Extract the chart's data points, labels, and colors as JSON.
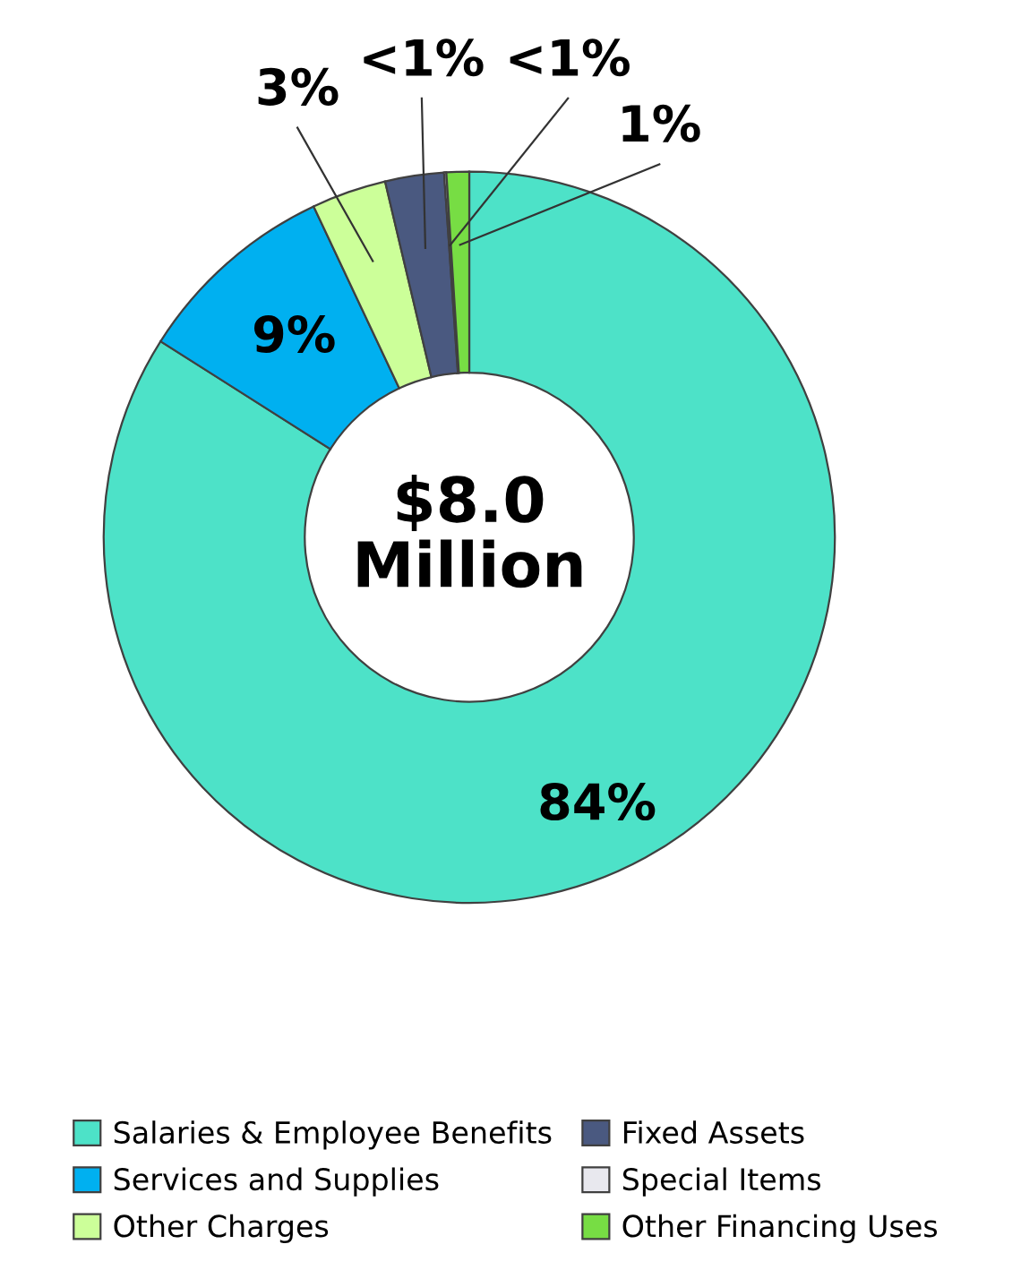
{
  "chart_data": {
    "type": "donut",
    "categories": [
      "Salaries & Employee Benefits",
      "Services and Supplies",
      "Other Charges",
      "Fixed Assets",
      "Special Items",
      "Other Financing Uses"
    ],
    "values": [
      84,
      9,
      3.3,
      2.6,
      0.1,
      1.0
    ],
    "colors": [
      "#4de2c8",
      "#00b0f0",
      "#ccff99",
      "#4a5980",
      "#e8e8ee",
      "#77dd44"
    ],
    "value_labels": [
      "84%",
      "9%",
      "3%",
      "<1%",
      "<1%",
      "1%"
    ],
    "annotations": [
      "$8.0\nMillion"
    ],
    "legend": "bottom"
  }
}
